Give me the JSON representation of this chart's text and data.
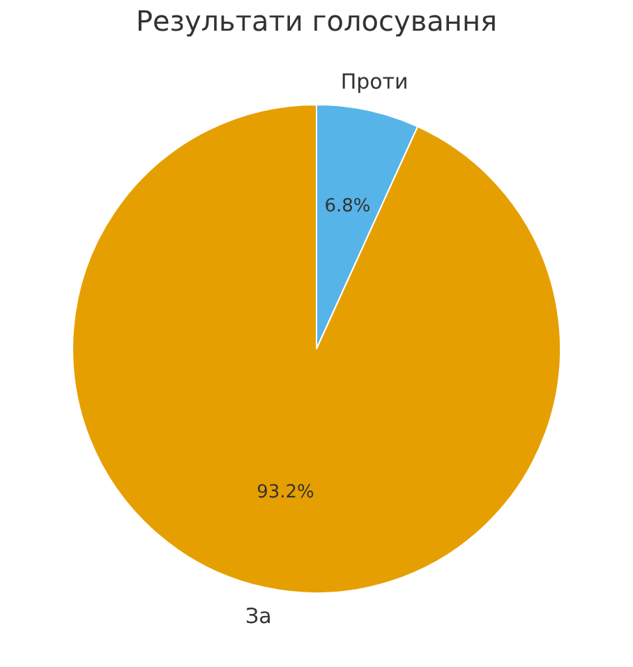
{
  "chart_data": {
    "type": "pie",
    "title": "Результати голосування",
    "categories": [
      "Проти",
      "За"
    ],
    "values": [
      6.8,
      93.2
    ],
    "colors": [
      "#56b4e9",
      "#e69f00"
    ],
    "value_labels": [
      "6.8%",
      "93.2%"
    ]
  }
}
